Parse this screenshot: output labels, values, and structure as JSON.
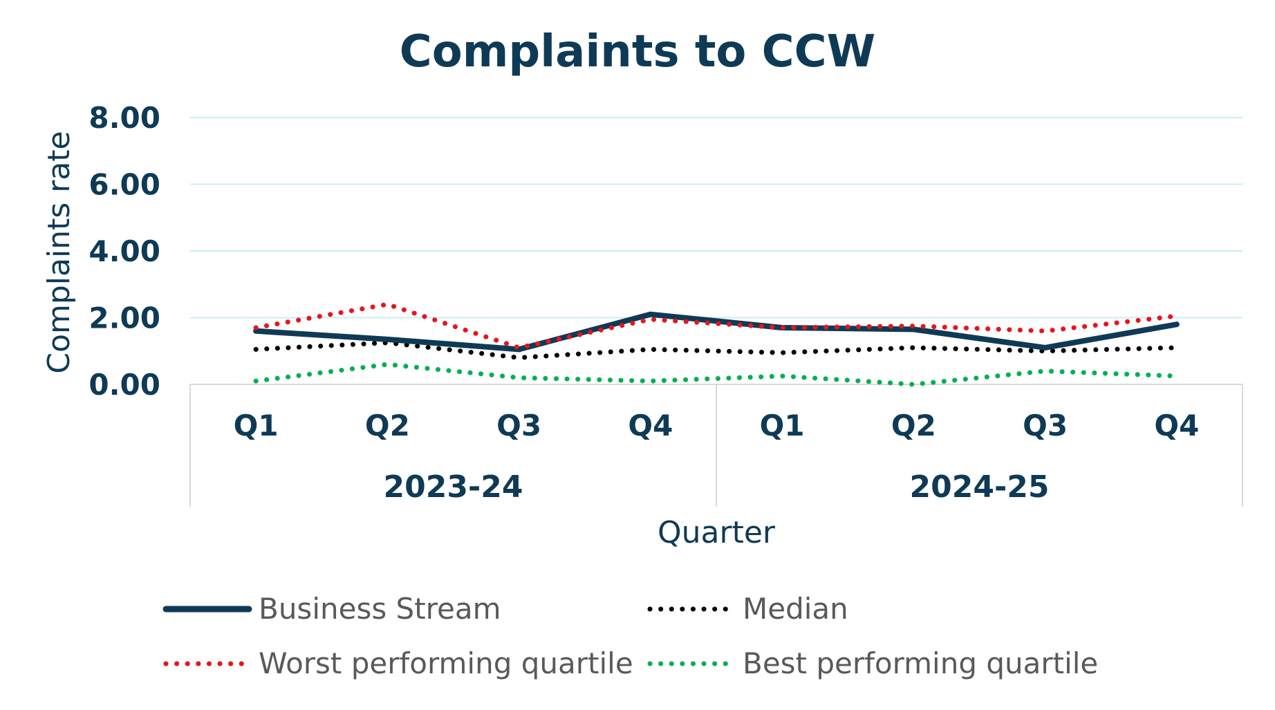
{
  "chart_data": {
    "type": "line",
    "title": "Complaints to CCW",
    "xlabel": "Quarter",
    "ylabel": "Complaints rate",
    "ylim": [
      0,
      8
    ],
    "y_ticks": [
      "0.00",
      "2.00",
      "4.00",
      "6.00",
      "8.00"
    ],
    "categories": [
      "Q1",
      "Q2",
      "Q3",
      "Q4",
      "Q1",
      "Q2",
      "Q3",
      "Q4"
    ],
    "groups": [
      {
        "label": "2023-24",
        "span": 4
      },
      {
        "label": "2024-25",
        "span": 4
      }
    ],
    "series": [
      {
        "name": "Business Stream",
        "values": [
          1.6,
          1.35,
          1.05,
          2.1,
          1.7,
          1.65,
          1.1,
          1.8
        ],
        "color": "#0e3a56",
        "style": "solid"
      },
      {
        "name": "Median",
        "values": [
          1.05,
          1.25,
          0.8,
          1.05,
          0.95,
          1.1,
          1.0,
          1.1
        ],
        "color": "#000000",
        "style": "dotted"
      },
      {
        "name": "Worst performing quartile",
        "values": [
          1.7,
          2.4,
          1.1,
          1.95,
          1.7,
          1.75,
          1.6,
          2.05
        ],
        "color": "#e8141b",
        "style": "dotted"
      },
      {
        "name": "Best performing quartile",
        "values": [
          0.1,
          0.6,
          0.2,
          0.1,
          0.25,
          0.0,
          0.4,
          0.25
        ],
        "color": "#00b050",
        "style": "dotted"
      }
    ],
    "grid": true,
    "legend_position": "bottom",
    "colors": {
      "text": "#0e3a56",
      "gridline": "#c9eef2",
      "axis": "#d9d9d9",
      "legend_text": "#595959"
    }
  }
}
